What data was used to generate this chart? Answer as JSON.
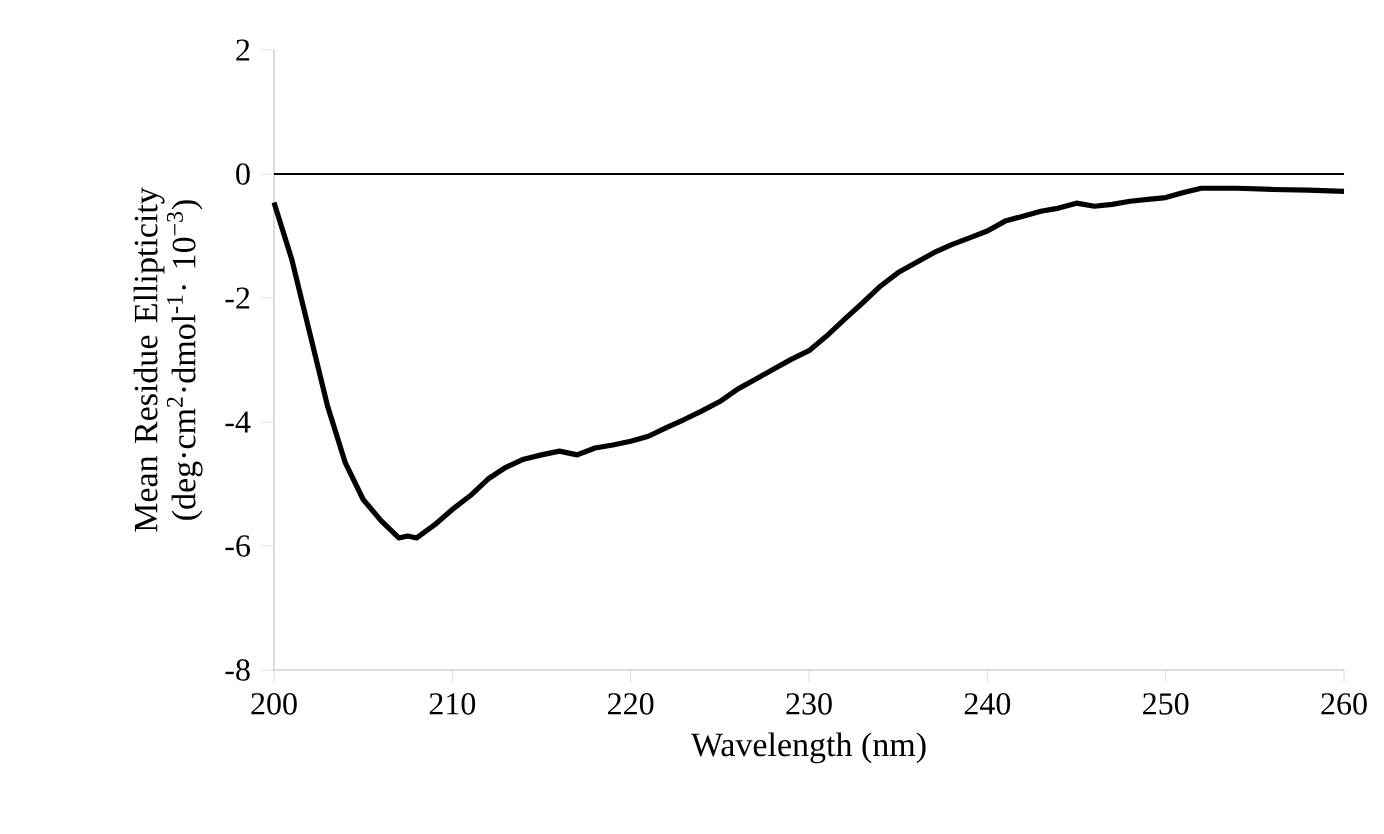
{
  "chart_data": {
    "type": "line",
    "xlabel": "Wavelength (nm)",
    "ylabel": "Mean Residue Ellipticity (deg·cm$^{2}$·dmol$^{-1}$· 10$^{−3}$)",
    "xlim": [
      200,
      260
    ],
    "ylim": [
      -8,
      2
    ],
    "xticks": [
      200,
      210,
      220,
      230,
      240,
      250,
      260
    ],
    "yticks": [
      -8,
      -6,
      -4,
      -2,
      0,
      2
    ],
    "grid": false,
    "legend": false,
    "marker": "none",
    "line_style": "solid",
    "ref_lines": [
      {
        "axis": "y",
        "value": 0,
        "color": "#000000"
      }
    ],
    "series": [
      {
        "color": "#000000",
        "x": [
          200,
          201,
          202,
          203,
          204,
          205,
          206,
          207,
          207.5,
          208,
          209,
          210,
          211,
          212,
          213,
          214,
          215,
          216,
          217,
          218,
          219,
          220,
          221,
          222,
          223,
          224,
          225,
          226,
          227,
          228,
          229,
          230,
          231,
          232,
          233,
          234,
          235,
          236,
          237,
          238,
          239,
          240,
          241,
          242,
          243,
          244,
          245,
          246,
          247,
          248,
          249,
          250,
          251,
          252,
          254,
          256,
          258,
          260
        ],
        "values": [
          -0.46,
          -1.38,
          -2.56,
          -3.74,
          -4.66,
          -5.25,
          -5.59,
          -5.87,
          -5.84,
          -5.87,
          -5.66,
          -5.41,
          -5.19,
          -4.92,
          -4.73,
          -4.6,
          -4.53,
          -4.47,
          -4.53,
          -4.42,
          -4.37,
          -4.31,
          -4.23,
          -4.09,
          -3.96,
          -3.82,
          -3.67,
          -3.47,
          -3.31,
          -3.15,
          -2.99,
          -2.85,
          -2.61,
          -2.34,
          -2.08,
          -1.81,
          -1.59,
          -1.43,
          -1.27,
          -1.14,
          -1.03,
          -0.92,
          -0.76,
          -0.68,
          -0.6,
          -0.55,
          -0.47,
          -0.52,
          -0.49,
          -0.44,
          -0.41,
          -0.38,
          -0.3,
          -0.23,
          -0.23,
          -0.25,
          -0.26,
          -0.28
        ]
      }
    ]
  }
}
